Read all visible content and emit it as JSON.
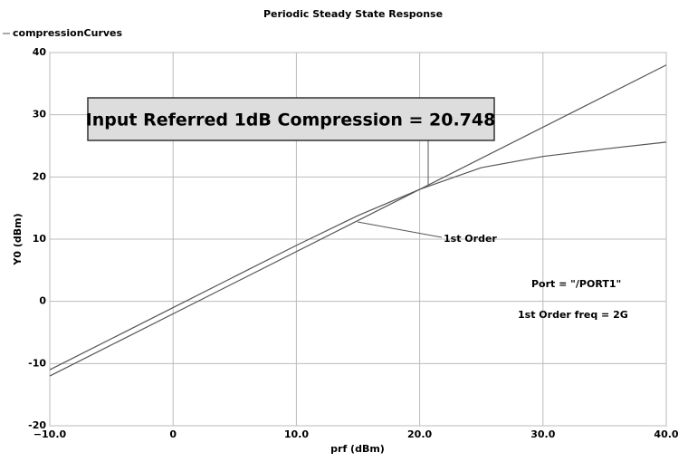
{
  "chart_data": {
    "type": "line",
    "title": "Periodic Steady State Response",
    "legend_label": "compressionCurves",
    "xlabel": "prf (dBm)",
    "ylabel": "Y0 (dBm)",
    "xlim": [
      -10,
      40
    ],
    "ylim": [
      -20,
      40
    ],
    "xticks": [
      {
        "value": -10,
        "label": "−10.0"
      },
      0,
      {
        "value": 10,
        "label": "10.0"
      },
      {
        "value": 20,
        "label": "20.0"
      },
      {
        "value": 30,
        "label": "30.0"
      },
      {
        "value": 40,
        "label": "40.0"
      }
    ],
    "yticks": [
      -20,
      -10,
      0,
      10,
      20,
      30,
      40
    ],
    "grid": true,
    "series": [
      {
        "color": "#555555",
        "x": [
          -10,
          -5,
          0,
          5,
          10,
          15,
          20,
          25,
          30,
          35,
          40
        ],
        "values": [
          -11,
          -6,
          -1,
          4,
          9,
          13.8,
          18,
          21.5,
          23.3,
          24.5,
          25.6
        ]
      },
      {
        "color": "#555555",
        "x": [
          -10,
          40
        ],
        "values": [
          -12,
          38
        ]
      }
    ],
    "annotations": {
      "compression": "Input Referred 1dB Compression = 20.748",
      "first_order": "1st Order",
      "port": "Port = \"/PORT1\"",
      "freq": "1st Order freq = 2G"
    }
  }
}
